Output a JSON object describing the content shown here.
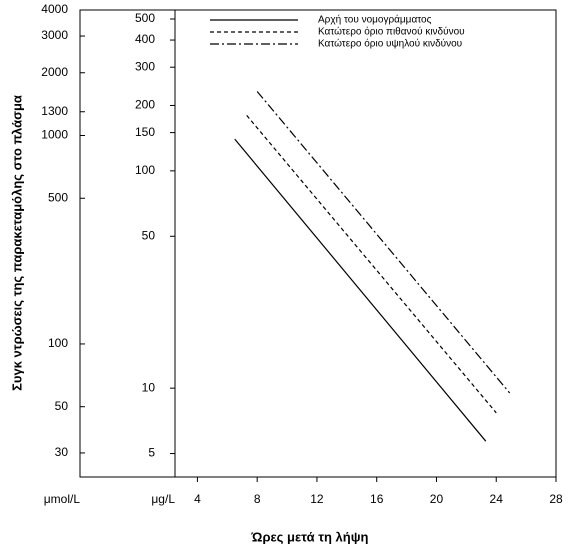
{
  "chart_data": {
    "type": "line",
    "ylabel": "Συγκ  ντρώσεις της παρακεταμόλης στο πλάσμα",
    "xlabel": "Ώρες μετά τη λήψη",
    "y2_unit": "μmol/L",
    "y_unit": "μg/L",
    "xlim": [
      2.5,
      28
    ],
    "xticks": [
      4,
      8,
      12,
      16,
      20,
      24,
      28
    ],
    "ylim": [
      3.9,
      550
    ],
    "yticks": [
      5,
      10,
      50,
      100,
      150,
      200,
      300,
      400,
      500
    ],
    "log_y": true,
    "y2lim": [
      23,
      4000
    ],
    "y2ticks": [
      30,
      50,
      100,
      500,
      1000,
      1300,
      2000,
      3000,
      4000
    ],
    "series": [
      {
        "name": "Αρχή του νομογράμματος",
        "color": "#000000",
        "dash": "solid",
        "x": [
          6.5,
          23.3
        ],
        "values": [
          140,
          5.7
        ]
      },
      {
        "name": "Κατώτερο όριο πιθανού κινδύνου",
        "color": "#000000",
        "dash": "dashed",
        "x": [
          7.3,
          24
        ],
        "values": [
          180,
          7.7
        ]
      },
      {
        "name": "Κατώτερο όριο υψηλού κινδύνου",
        "color": "#000000",
        "dash": "dashdot",
        "x": [
          8,
          24.9
        ],
        "values": [
          232,
          9.5
        ]
      }
    ]
  }
}
